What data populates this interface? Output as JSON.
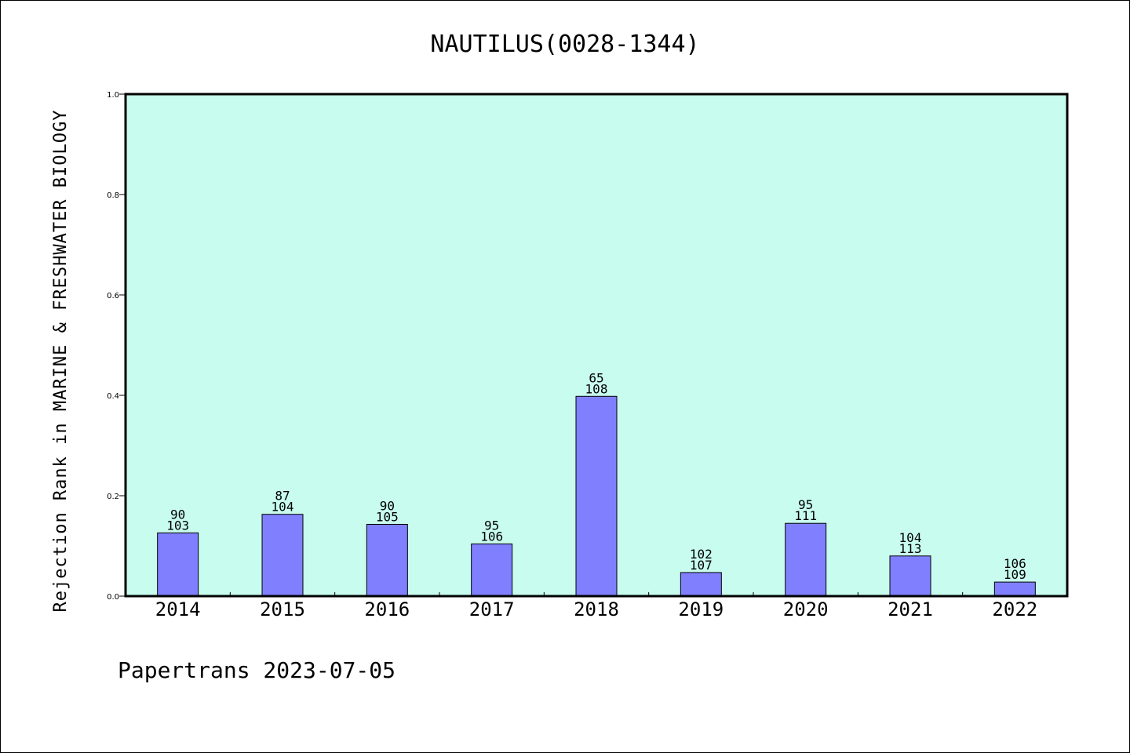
{
  "chart_data": {
    "type": "bar",
    "title": "NAUTILUS(0028-1344)",
    "ylabel": "Rejection Rank in MARINE & FRESHWATER BIOLOGY",
    "xlabel": "",
    "ylim": [
      0,
      1.0
    ],
    "yticks": [
      "0.0",
      "0.2",
      "0.4",
      "0.6",
      "0.8",
      "1.0"
    ],
    "categories": [
      "2014",
      "2015",
      "2016",
      "2017",
      "2018",
      "2019",
      "2020",
      "2021",
      "2022"
    ],
    "values": [
      0.126,
      0.163,
      0.143,
      0.104,
      0.398,
      0.047,
      0.145,
      0.08,
      0.028
    ],
    "labels_top": [
      "90",
      "87",
      "90",
      "95",
      "65",
      "102",
      "95",
      "104",
      "106"
    ],
    "labels_bottom": [
      "103",
      "104",
      "105",
      "106",
      "108",
      "107",
      "111",
      "113",
      "109"
    ],
    "colors": {
      "plot_background": "#c8fcee",
      "bar": "#8080ff",
      "bar_edge": "#000000"
    },
    "grid": false,
    "legend": "none"
  },
  "footer": "Papertrans 2023-07-05"
}
